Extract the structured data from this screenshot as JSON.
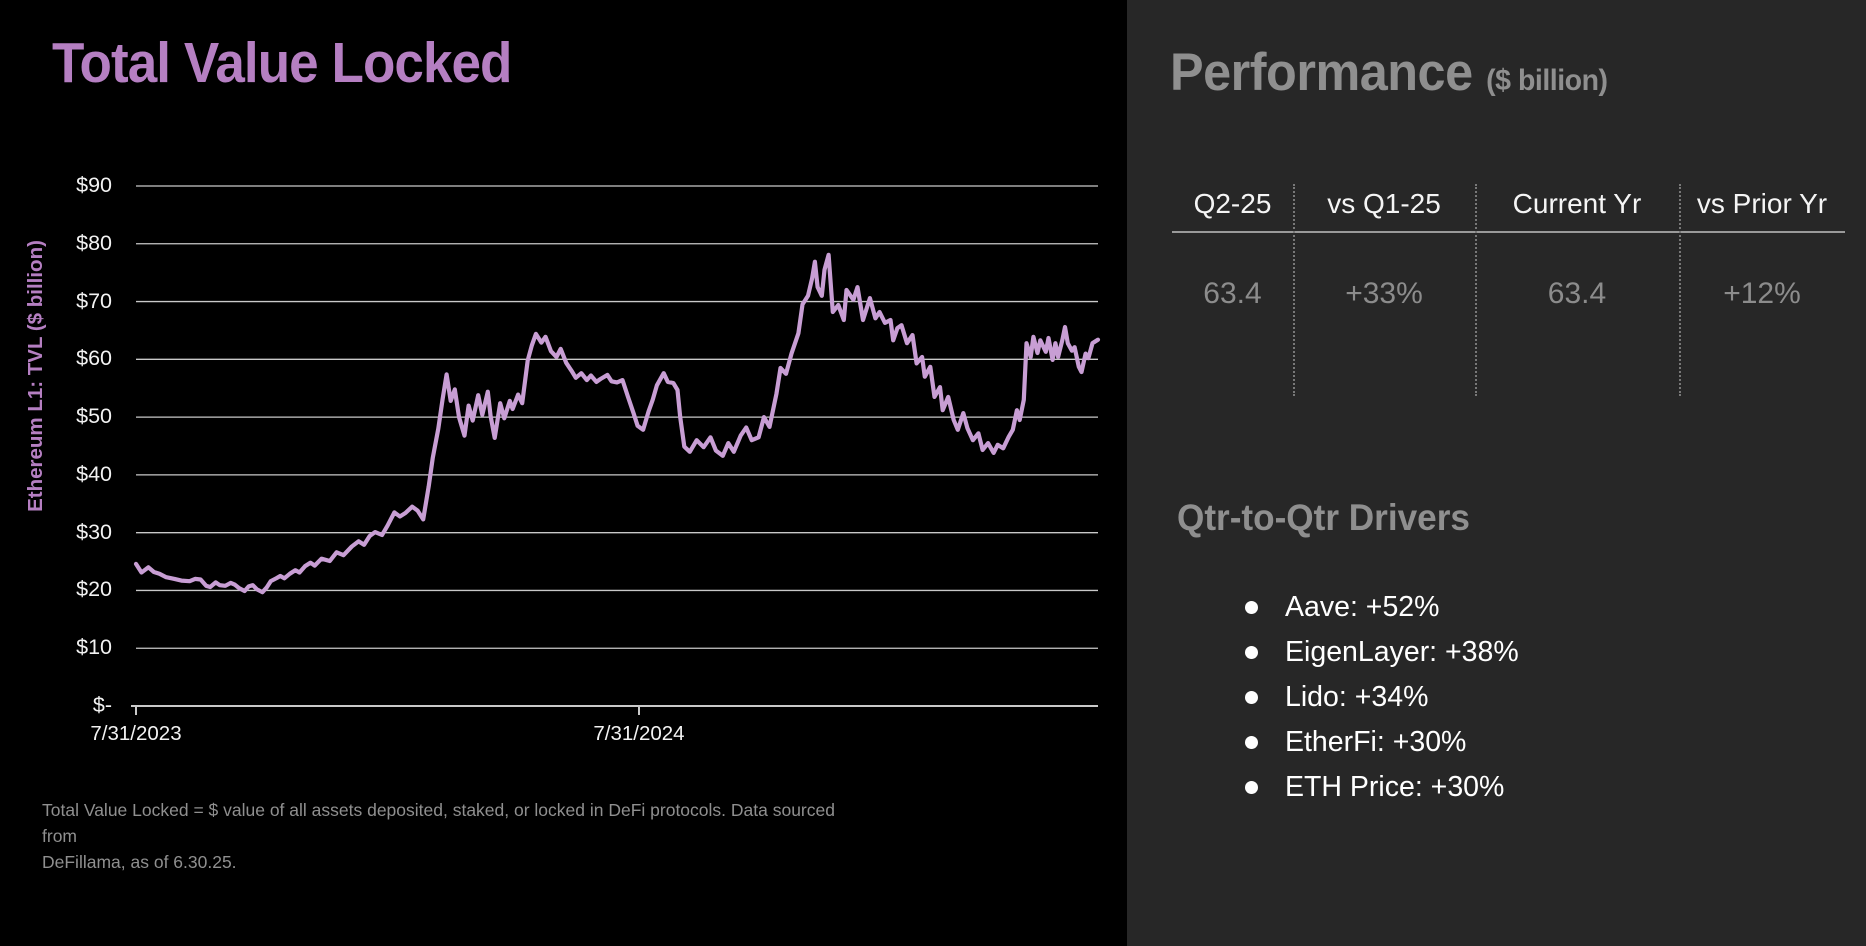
{
  "left_panel": {
    "title": "Total Value Locked",
    "footnote_lines": [
      "Total Value Locked = $ value of all assets deposited, staked, or locked in DeFi protocols. Data sourced from",
      "DeFillama, as of 6.30.25."
    ]
  },
  "chart_data": {
    "type": "line",
    "title": "Total Value Locked",
    "xlabel": "",
    "ylabel": "Ethereum L1: TVL ($ billion)",
    "series_name": "Ethereum L1 TVL",
    "units": "$ billion",
    "ylim": [
      0,
      90
    ],
    "grid": true,
    "legend": "none",
    "line_color": "#c89ed4",
    "y_ticks": [
      {
        "label": "$90",
        "value": 90
      },
      {
        "label": "$80",
        "value": 80
      },
      {
        "label": "$70",
        "value": 70
      },
      {
        "label": "$60",
        "value": 60
      },
      {
        "label": "$50",
        "value": 50
      },
      {
        "label": "$40",
        "value": 40
      },
      {
        "label": "$30",
        "value": 30
      },
      {
        "label": "$20",
        "value": 20
      },
      {
        "label": "$10",
        "value": 10
      },
      {
        "label": "$-",
        "value": 0
      }
    ],
    "x_ticks": [
      {
        "label": "7/31/2023",
        "day": 0
      },
      {
        "label": "7/31/2024",
        "day": 366
      }
    ],
    "x_range_days": [
      0,
      700
    ],
    "points": [
      [
        0,
        24.6
      ],
      [
        4,
        23.1
      ],
      [
        9,
        24.0
      ],
      [
        13,
        23.2
      ],
      [
        17,
        22.9
      ],
      [
        22,
        22.3
      ],
      [
        28,
        22.0
      ],
      [
        33,
        21.7
      ],
      [
        39,
        21.6
      ],
      [
        43,
        22.0
      ],
      [
        47,
        21.9
      ],
      [
        51,
        20.8
      ],
      [
        54,
        20.6
      ],
      [
        58,
        21.4
      ],
      [
        61,
        20.9
      ],
      [
        65,
        20.8
      ],
      [
        69,
        21.3
      ],
      [
        72,
        21.0
      ],
      [
        75,
        20.4
      ],
      [
        79,
        19.9
      ],
      [
        82,
        20.7
      ],
      [
        85,
        20.9
      ],
      [
        88,
        20.2
      ],
      [
        92,
        19.7
      ],
      [
        95,
        20.5
      ],
      [
        98,
        21.6
      ],
      [
        102,
        22.1
      ],
      [
        105,
        22.5
      ],
      [
        108,
        22.1
      ],
      [
        112,
        22.9
      ],
      [
        116,
        23.5
      ],
      [
        119,
        23.1
      ],
      [
        123,
        24.2
      ],
      [
        127,
        24.8
      ],
      [
        130,
        24.3
      ],
      [
        135,
        25.5
      ],
      [
        141,
        25.1
      ],
      [
        146,
        26.6
      ],
      [
        151,
        26.1
      ],
      [
        157,
        27.6
      ],
      [
        162,
        28.5
      ],
      [
        166,
        27.9
      ],
      [
        170,
        29.4
      ],
      [
        174,
        30.1
      ],
      [
        179,
        29.6
      ],
      [
        183,
        31.2
      ],
      [
        188,
        33.5
      ],
      [
        192,
        32.8
      ],
      [
        196,
        33.4
      ],
      [
        201,
        34.5
      ],
      [
        205,
        33.8
      ],
      [
        209,
        32.3
      ],
      [
        213,
        38.0
      ],
      [
        216,
        43.0
      ],
      [
        220,
        48.0
      ],
      [
        223,
        53.0
      ],
      [
        226,
        57.4
      ],
      [
        229,
        52.8
      ],
      [
        232,
        54.8
      ],
      [
        235,
        50.0
      ],
      [
        239,
        46.8
      ],
      [
        242,
        52.0
      ],
      [
        245,
        49.4
      ],
      [
        249,
        53.8
      ],
      [
        252,
        50.4
      ],
      [
        256,
        54.4
      ],
      [
        258,
        50.2
      ],
      [
        261,
        46.4
      ],
      [
        265,
        52.4
      ],
      [
        268,
        49.8
      ],
      [
        272,
        52.8
      ],
      [
        274,
        51.4
      ],
      [
        278,
        53.9
      ],
      [
        281,
        52.4
      ],
      [
        285,
        59.8
      ],
      [
        288,
        62.4
      ],
      [
        291,
        64.4
      ],
      [
        295,
        62.9
      ],
      [
        298,
        63.9
      ],
      [
        302,
        61.4
      ],
      [
        306,
        60.4
      ],
      [
        309,
        61.8
      ],
      [
        313,
        59.4
      ],
      [
        317,
        58.0
      ],
      [
        320,
        56.8
      ],
      [
        324,
        57.6
      ],
      [
        328,
        56.4
      ],
      [
        331,
        57.2
      ],
      [
        335,
        56.1
      ],
      [
        338,
        56.6
      ],
      [
        343,
        57.3
      ],
      [
        346,
        56.2
      ],
      [
        350,
        56.0
      ],
      [
        354,
        56.4
      ],
      [
        358,
        53.5
      ],
      [
        362,
        50.7
      ],
      [
        365,
        48.5
      ],
      [
        369,
        47.8
      ],
      [
        373,
        51.0
      ],
      [
        376,
        53.0
      ],
      [
        379,
        55.5
      ],
      [
        384,
        57.6
      ],
      [
        387,
        56.1
      ],
      [
        391,
        55.9
      ],
      [
        394,
        54.7
      ],
      [
        396,
        50.0
      ],
      [
        399,
        44.9
      ],
      [
        403,
        44.0
      ],
      [
        408,
        46.0
      ],
      [
        413,
        44.8
      ],
      [
        418,
        46.5
      ],
      [
        422,
        44.2
      ],
      [
        427,
        43.3
      ],
      [
        431,
        45.5
      ],
      [
        435,
        44.0
      ],
      [
        440,
        46.8
      ],
      [
        444,
        48.2
      ],
      [
        448,
        46.0
      ],
      [
        453,
        46.5
      ],
      [
        457,
        50.0
      ],
      [
        461,
        48.3
      ],
      [
        466,
        54.0
      ],
      [
        469,
        58.5
      ],
      [
        473,
        57.5
      ],
      [
        477,
        61.0
      ],
      [
        482,
        64.5
      ],
      [
        485,
        69.5
      ],
      [
        489,
        71.0
      ],
      [
        492,
        74.0
      ],
      [
        494,
        76.9
      ],
      [
        496,
        72.5
      ],
      [
        499,
        71.0
      ],
      [
        501,
        75.5
      ],
      [
        504,
        78.1
      ],
      [
        507,
        68.2
      ],
      [
        511,
        69.4
      ],
      [
        515,
        66.8
      ],
      [
        517,
        72.0
      ],
      [
        522,
        70.3
      ],
      [
        525,
        72.5
      ],
      [
        529,
        66.8
      ],
      [
        534,
        70.6
      ],
      [
        538,
        67.1
      ],
      [
        541,
        68.2
      ],
      [
        545,
        66.3
      ],
      [
        549,
        66.8
      ],
      [
        551,
        63.3
      ],
      [
        554,
        65.4
      ],
      [
        557,
        65.9
      ],
      [
        561,
        62.8
      ],
      [
        565,
        64.2
      ],
      [
        568,
        59.3
      ],
      [
        572,
        60.4
      ],
      [
        574,
        57.0
      ],
      [
        578,
        58.7
      ],
      [
        581,
        53.5
      ],
      [
        585,
        55.2
      ],
      [
        587,
        51.2
      ],
      [
        591,
        53.5
      ],
      [
        595,
        49.5
      ],
      [
        598,
        47.8
      ],
      [
        602,
        50.7
      ],
      [
        605,
        48.1
      ],
      [
        609,
        46.0
      ],
      [
        613,
        47.2
      ],
      [
        616,
        44.3
      ],
      [
        620,
        45.5
      ],
      [
        624,
        43.8
      ],
      [
        627,
        45.2
      ],
      [
        631,
        44.6
      ],
      [
        635,
        46.6
      ],
      [
        638,
        47.8
      ],
      [
        641,
        51.2
      ],
      [
        643,
        49.5
      ],
      [
        646,
        53.0
      ],
      [
        648,
        62.8
      ],
      [
        651,
        60.4
      ],
      [
        653,
        63.9
      ],
      [
        656,
        61.1
      ],
      [
        658,
        63.3
      ],
      [
        662,
        61.3
      ],
      [
        664,
        63.7
      ],
      [
        667,
        59.9
      ],
      [
        669,
        62.8
      ],
      [
        671,
        60.4
      ],
      [
        674,
        63.3
      ],
      [
        676,
        65.6
      ],
      [
        678,
        62.8
      ],
      [
        681,
        61.5
      ],
      [
        683,
        62.1
      ],
      [
        686,
        58.7
      ],
      [
        688,
        57.8
      ],
      [
        691,
        61.0
      ],
      [
        693,
        60.2
      ],
      [
        696,
        62.8
      ],
      [
        700,
        63.4
      ]
    ]
  },
  "right_panel": {
    "heading": "Performance",
    "heading_unit": "($ billion)",
    "table": {
      "columns": [
        "Q2-25",
        "vs Q1-25",
        "Current Yr",
        "vs Prior Yr"
      ],
      "values": [
        "63.4",
        "+33%",
        "63.4",
        "+12%"
      ]
    },
    "drivers": {
      "heading": "Qtr-to-Qtr Drivers",
      "items": [
        "Aave: +52%",
        "EigenLayer: +38%",
        "Lido: +34%",
        "EtherFi: +30%",
        "ETH Price: +30%"
      ]
    }
  },
  "colors": {
    "accent_purple": "#b57fc2",
    "line_purple": "#c89ed4",
    "left_bg": "#000000",
    "right_bg": "#272727",
    "gridline": "#c9c9c9",
    "muted_text": "#8f8f8f",
    "white_text": "#ffffff"
  }
}
